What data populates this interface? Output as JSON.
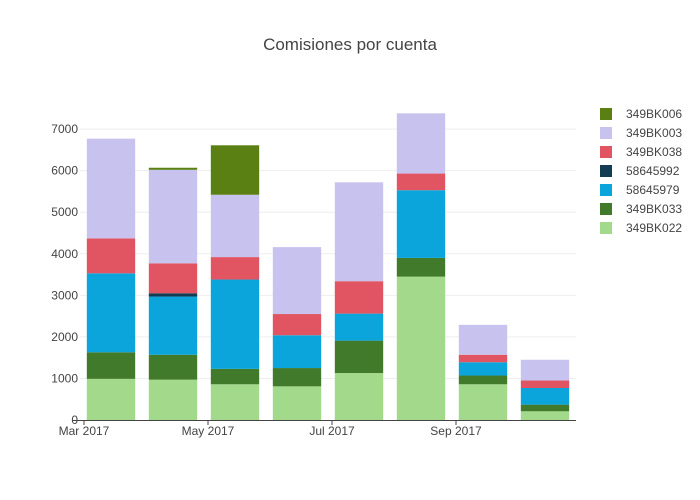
{
  "chart_data": {
    "type": "bar",
    "stacked": true,
    "title": "Comisiones por cuenta",
    "xlabel": "",
    "ylabel": "",
    "ylim": [
      0,
      7700
    ],
    "yticks": [
      0,
      1000,
      2000,
      3000,
      4000,
      5000,
      6000,
      7000
    ],
    "yticklabels": [
      "0",
      "1000",
      "2000",
      "3000",
      "4000",
      "5000",
      "6000",
      "7000"
    ],
    "categories": [
      "2017-03",
      "2017-04",
      "2017-05",
      "2017-06",
      "2017-07",
      "2017-08",
      "2017-09",
      "2017-10"
    ],
    "xticks": [
      {
        "index": 0,
        "label": "Mar 2017"
      },
      {
        "index": 2,
        "label": "May 2017"
      },
      {
        "index": 4,
        "label": "Jul 2017"
      },
      {
        "index": 6,
        "label": "Sep 2017"
      }
    ],
    "legend_position": "top-right",
    "series": [
      {
        "name": "349BK022",
        "color": "#a3d98a",
        "values": [
          990,
          970,
          860,
          810,
          1130,
          3450,
          860,
          210
        ]
      },
      {
        "name": "349BK033",
        "color": "#407a2a",
        "values": [
          640,
          600,
          370,
          440,
          780,
          450,
          210,
          160
        ]
      },
      {
        "name": "58645979",
        "color": "#0ba5dc",
        "values": [
          1900,
          1400,
          2150,
          790,
          650,
          1630,
          320,
          400
        ]
      },
      {
        "name": "58645992",
        "color": "#143d54",
        "values": [
          0,
          80,
          0,
          0,
          0,
          0,
          0,
          0
        ]
      },
      {
        "name": "349BK038",
        "color": "#e05561",
        "values": [
          840,
          720,
          540,
          510,
          780,
          400,
          180,
          180
        ]
      },
      {
        "name": "349BK003",
        "color": "#c8c3ee",
        "values": [
          2400,
          2250,
          1500,
          1610,
          2380,
          1450,
          720,
          500
        ]
      },
      {
        "name": "349BK006",
        "color": "#5a7f12",
        "values": [
          0,
          50,
          1190,
          0,
          0,
          0,
          0,
          0
        ]
      }
    ]
  }
}
